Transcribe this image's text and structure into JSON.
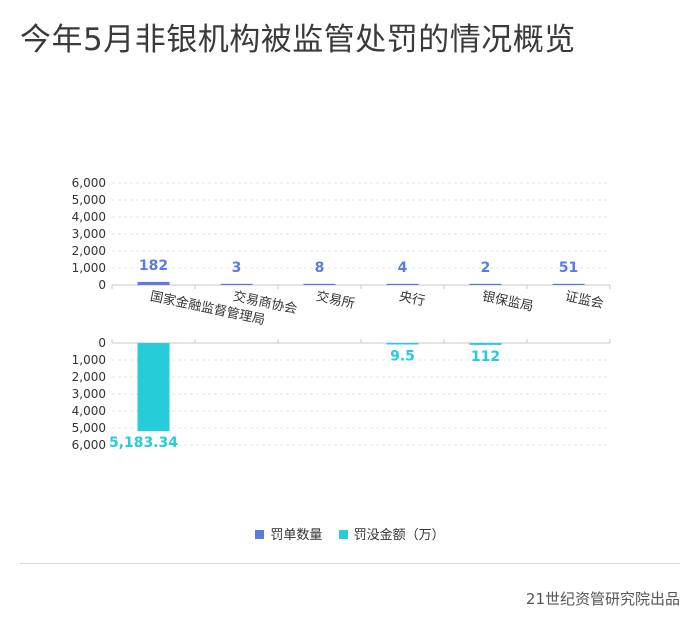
{
  "title": "今年5月非银机构被监管处罚的情况概览",
  "source": "21世纪资管研究院出品",
  "colors": {
    "count": "#5b7be0",
    "amount": "#26ccd8",
    "grid": "#e6e6e6",
    "axis": "#c8c8c8"
  },
  "chart_data": {
    "type": "bar",
    "categories": [
      "国家金融监督管理局",
      "交易商协会",
      "交易所",
      "央行",
      "银保监局",
      "证监会"
    ],
    "series": [
      {
        "name": "罚单数量",
        "values": [
          182,
          3,
          8,
          4,
          2,
          51
        ],
        "labels": [
          "182",
          "3",
          "8",
          "4",
          "2",
          "51"
        ]
      },
      {
        "name": "罚没金额（万）",
        "values": [
          5183.34,
          null,
          null,
          9.5,
          112,
          null
        ],
        "labels": [
          "5,183.34",
          "",
          "",
          "9.5",
          "112",
          ""
        ]
      }
    ],
    "ylim": [
      0,
      6000
    ],
    "yticks": [
      "0",
      "1,000",
      "2,000",
      "3,000",
      "4,000",
      "5,000",
      "6,000"
    ],
    "grid": true,
    "legend_position": "bottom"
  }
}
